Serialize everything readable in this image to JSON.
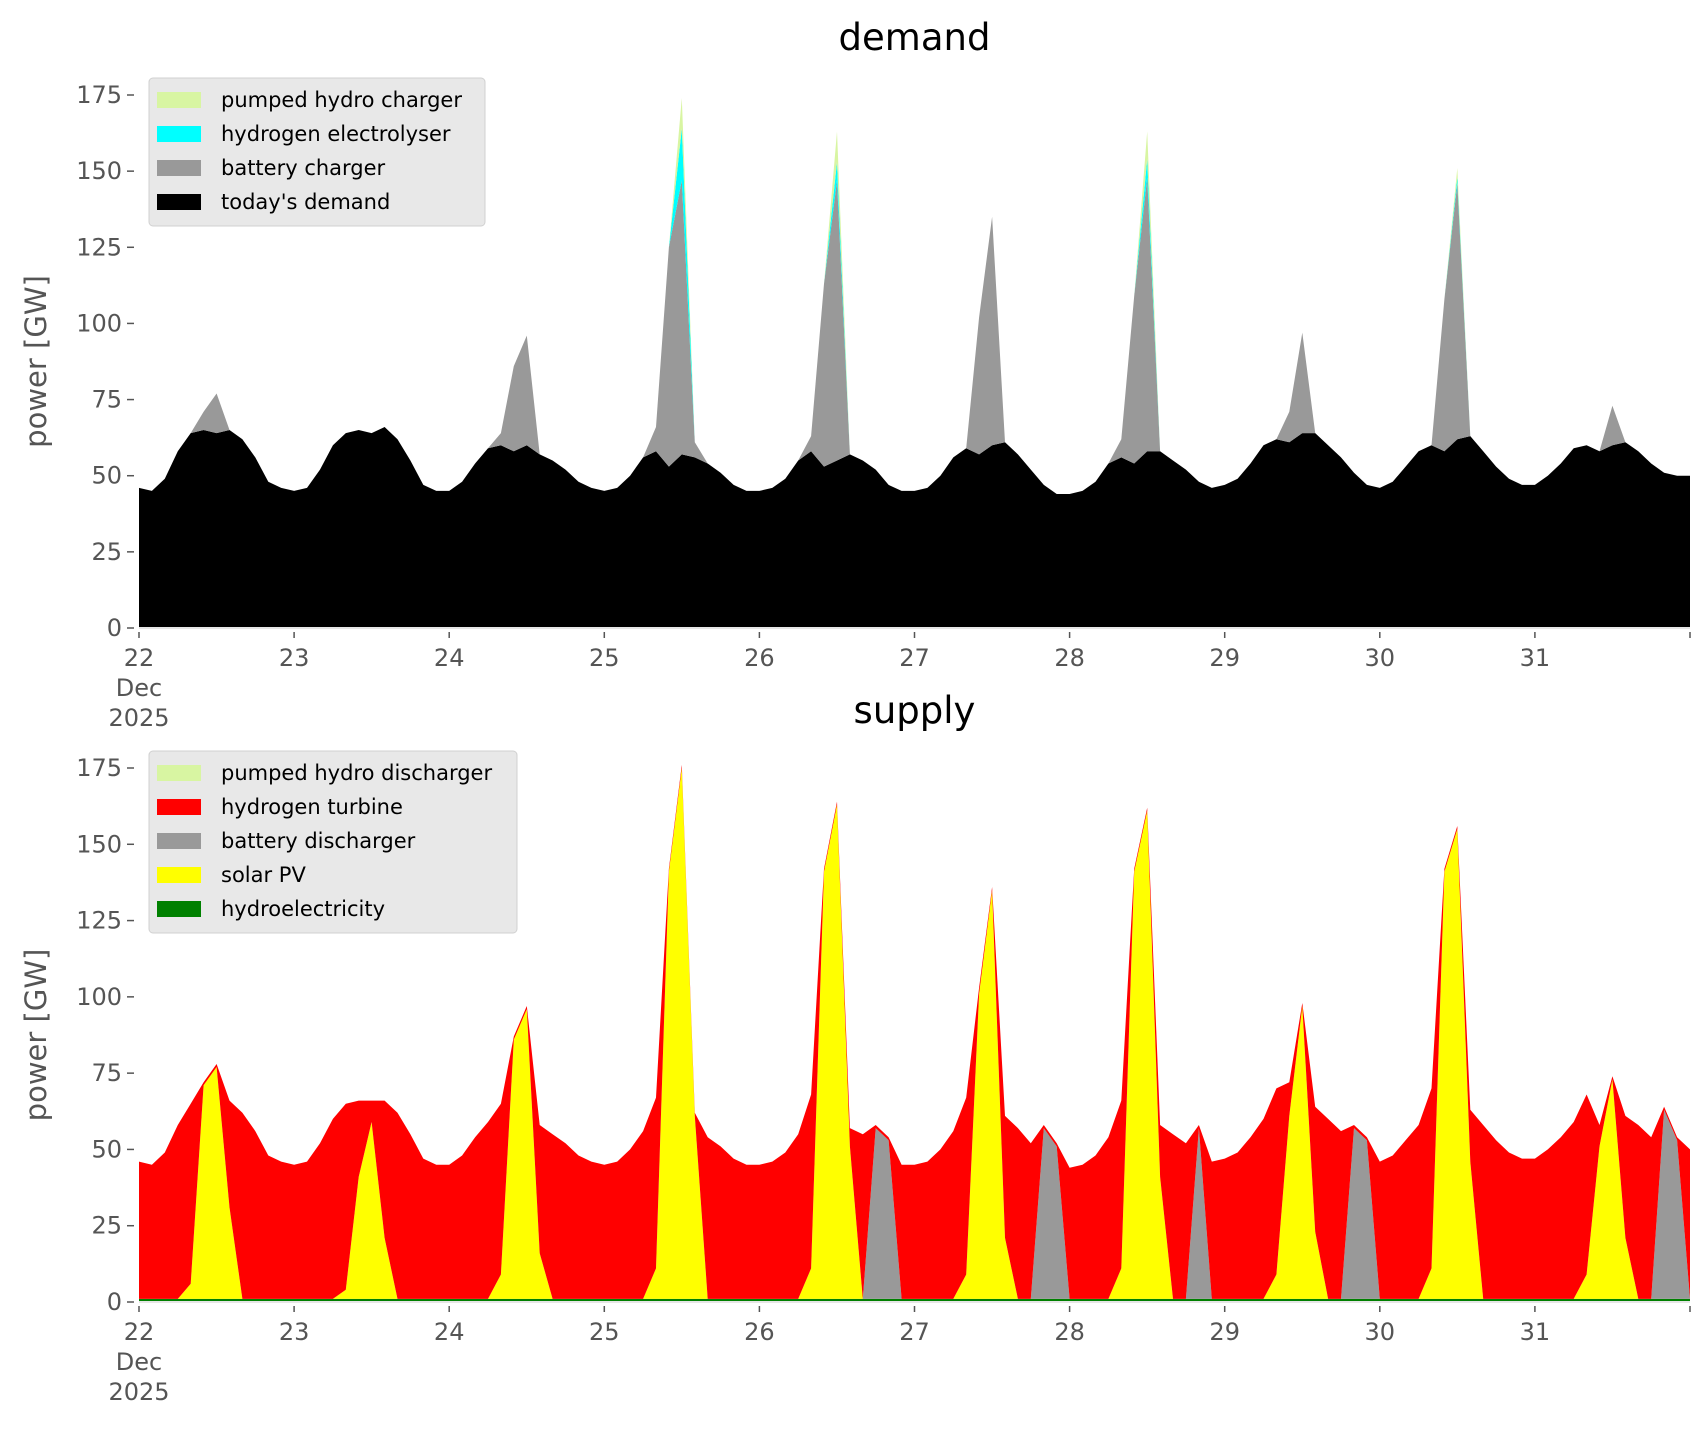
{
  "chart_data": [
    {
      "type": "area",
      "stacked": true,
      "title": "demand",
      "xlabel": "",
      "ylabel": "power [GW]",
      "ylim": [
        0,
        175
      ],
      "yticks": [
        0,
        25,
        50,
        75,
        100,
        125,
        150,
        175
      ],
      "xlim_days": [
        0,
        10
      ],
      "xtick_labels": [
        "22\nDec\n2025",
        "23",
        "24",
        "25",
        "26",
        "27",
        "28",
        "29",
        "30",
        "31"
      ],
      "x_unit": "hours since 22 Dec 2025 00:00",
      "x_step_hours": 2,
      "legend_position": "upper-left",
      "grid": false,
      "series": [
        {
          "name": "today's demand",
          "color": "#000000",
          "values": [
            46,
            45,
            49,
            58,
            64,
            65,
            64,
            65,
            62,
            56,
            48,
            46,
            45,
            46,
            52,
            60,
            64,
            65,
            64,
            66,
            62,
            55,
            47,
            45,
            45,
            48,
            54,
            59,
            60,
            58,
            60,
            57,
            55,
            52,
            48,
            46,
            45,
            46,
            50,
            56,
            58,
            53,
            57,
            56,
            54,
            51,
            47,
            45,
            45,
            46,
            49,
            55,
            58,
            53,
            55,
            57,
            55,
            52,
            47,
            45,
            45,
            46,
            50,
            56,
            59,
            57,
            60,
            61,
            57,
            52,
            47,
            44,
            44,
            45,
            48,
            54,
            56,
            54,
            58,
            58,
            55,
            52,
            48,
            46,
            47,
            49,
            54,
            60,
            62,
            61,
            64,
            64,
            60,
            56,
            51,
            47,
            46,
            48,
            53,
            58,
            60,
            58,
            62,
            63,
            58,
            53,
            49,
            47,
            47,
            50,
            54,
            59,
            60,
            58,
            60,
            61,
            58,
            54,
            51,
            50,
            50
          ]
        },
        {
          "name": "battery charger",
          "color": "#999999",
          "values": [
            0,
            0,
            0,
            0,
            0,
            6,
            13,
            0,
            0,
            0,
            0,
            0,
            0,
            0,
            0,
            0,
            0,
            0,
            0,
            0,
            0,
            0,
            0,
            0,
            0,
            0,
            0,
            0,
            4,
            28,
            36,
            0,
            0,
            0,
            0,
            0,
            0,
            0,
            0,
            0,
            8,
            72,
            90,
            5,
            0,
            0,
            0,
            0,
            0,
            0,
            0,
            0,
            5,
            60,
            92,
            0,
            0,
            0,
            0,
            0,
            0,
            0,
            0,
            0,
            0,
            45,
            75,
            0,
            0,
            0,
            0,
            0,
            0,
            0,
            0,
            0,
            6,
            55,
            90,
            0,
            0,
            0,
            0,
            0,
            0,
            0,
            0,
            0,
            0,
            10,
            33,
            0,
            0,
            0,
            0,
            0,
            0,
            0,
            0,
            0,
            0,
            50,
            84,
            0,
            0,
            0,
            0,
            0,
            0,
            0,
            0,
            0,
            0,
            0,
            13,
            0,
            0,
            0,
            0,
            0,
            0
          ]
        },
        {
          "name": "hydrogen electrolyser",
          "color": "#00ffff",
          "values": [
            0,
            0,
            0,
            0,
            0,
            0,
            0,
            0,
            0,
            0,
            0,
            0,
            0,
            0,
            0,
            0,
            0,
            0,
            0,
            0,
            0,
            0,
            0,
            0,
            0,
            0,
            0,
            0,
            0,
            0,
            0,
            0,
            0,
            0,
            0,
            0,
            0,
            0,
            0,
            0,
            0,
            0,
            17,
            0,
            0,
            0,
            0,
            0,
            0,
            0,
            0,
            0,
            0,
            0,
            6,
            0,
            0,
            0,
            0,
            0,
            0,
            0,
            0,
            0,
            0,
            0,
            0,
            0,
            0,
            0,
            0,
            0,
            0,
            0,
            0,
            0,
            0,
            0,
            6,
            0,
            0,
            0,
            0,
            0,
            0,
            0,
            0,
            0,
            0,
            0,
            0,
            0,
            0,
            0,
            0,
            0,
            0,
            0,
            0,
            0,
            0,
            0,
            2,
            0,
            0,
            0,
            0,
            0,
            0,
            0,
            0,
            0,
            0,
            0,
            0,
            0,
            0,
            0,
            0,
            0,
            0
          ]
        },
        {
          "name": "pumped hydro charger",
          "color": "#d8f5a2",
          "values": [
            0,
            0,
            0,
            0,
            0,
            0,
            0,
            0,
            0,
            0,
            0,
            0,
            0,
            0,
            0,
            0,
            0,
            0,
            0,
            0,
            0,
            0,
            0,
            0,
            0,
            0,
            0,
            0,
            0,
            0,
            0,
            0,
            0,
            0,
            0,
            0,
            0,
            0,
            0,
            0,
            0,
            0,
            10,
            0,
            0,
            0,
            0,
            0,
            0,
            0,
            0,
            0,
            0,
            0,
            10,
            0,
            0,
            0,
            0,
            0,
            0,
            0,
            0,
            0,
            0,
            0,
            0,
            0,
            0,
            0,
            0,
            0,
            0,
            0,
            0,
            0,
            0,
            0,
            9,
            0,
            0,
            0,
            0,
            0,
            0,
            0,
            0,
            0,
            0,
            0,
            0,
            0,
            0,
            0,
            0,
            0,
            0,
            0,
            0,
            0,
            0,
            0,
            3,
            0,
            0,
            0,
            0,
            0,
            0,
            0,
            0,
            0,
            0,
            0,
            0,
            0,
            0,
            0,
            0,
            0,
            0
          ]
        }
      ]
    },
    {
      "type": "area",
      "stacked": true,
      "title": "supply",
      "xlabel": "",
      "ylabel": "power [GW]",
      "ylim": [
        0,
        175
      ],
      "yticks": [
        0,
        25,
        50,
        75,
        100,
        125,
        150,
        175
      ],
      "xlim_days": [
        0,
        10
      ],
      "xtick_labels": [
        "22\nDec\n2025",
        "23",
        "24",
        "25",
        "26",
        "27",
        "28",
        "29",
        "30",
        "31"
      ],
      "x_unit": "hours since 22 Dec 2025 00:00",
      "x_step_hours": 2,
      "legend_position": "upper-left",
      "grid": false,
      "series": [
        {
          "name": "hydroelectricity",
          "color": "#008000",
          "values": [
            1,
            1,
            1,
            1,
            1,
            1,
            1,
            1,
            1,
            1,
            1,
            1,
            1,
            1,
            1,
            1,
            1,
            1,
            1,
            1,
            1,
            1,
            1,
            1,
            1,
            1,
            1,
            1,
            1,
            1,
            1,
            1,
            1,
            1,
            1,
            1,
            1,
            1,
            1,
            1,
            1,
            1,
            1,
            1,
            1,
            1,
            1,
            1,
            1,
            1,
            1,
            1,
            1,
            1,
            1,
            1,
            1,
            1,
            1,
            1,
            1,
            1,
            1,
            1,
            1,
            1,
            1,
            1,
            1,
            1,
            1,
            1,
            1,
            1,
            1,
            1,
            1,
            1,
            1,
            1,
            1,
            1,
            1,
            1,
            1,
            1,
            1,
            1,
            1,
            1,
            1,
            1,
            1,
            1,
            1,
            1,
            1,
            1,
            1,
            1,
            1,
            1,
            1,
            1,
            1,
            1,
            1,
            1,
            1,
            1,
            1,
            1,
            1,
            1,
            1,
            1,
            1,
            1,
            1,
            1,
            1
          ]
        },
        {
          "name": "solar PV",
          "color": "#ffff00",
          "values": [
            0,
            0,
            0,
            0,
            5,
            70,
            76,
            30,
            0,
            0,
            0,
            0,
            0,
            0,
            0,
            0,
            3,
            40,
            58,
            20,
            0,
            0,
            0,
            0,
            0,
            0,
            0,
            0,
            8,
            85,
            95,
            15,
            0,
            0,
            0,
            0,
            0,
            0,
            0,
            0,
            10,
            140,
            174,
            60,
            0,
            0,
            0,
            0,
            0,
            0,
            0,
            0,
            10,
            140,
            162,
            50,
            0,
            0,
            0,
            0,
            0,
            0,
            0,
            0,
            8,
            100,
            134,
            20,
            0,
            0,
            0,
            0,
            0,
            0,
            0,
            0,
            10,
            140,
            160,
            40,
            0,
            0,
            0,
            0,
            0,
            0,
            0,
            0,
            8,
            60,
            96,
            22,
            0,
            0,
            0,
            0,
            0,
            0,
            0,
            0,
            10,
            140,
            154,
            45,
            0,
            0,
            0,
            0,
            0,
            0,
            0,
            0,
            8,
            50,
            72,
            20,
            0,
            0,
            0,
            0,
            0
          ]
        },
        {
          "name": "battery discharger",
          "color": "#999999",
          "values": [
            0,
            0,
            0,
            0,
            0,
            0,
            0,
            0,
            0,
            0,
            0,
            0,
            0,
            0,
            0,
            0,
            0,
            0,
            0,
            0,
            0,
            0,
            0,
            0,
            0,
            0,
            0,
            0,
            0,
            0,
            0,
            0,
            0,
            0,
            0,
            0,
            0,
            0,
            0,
            0,
            0,
            0,
            0,
            0,
            0,
            0,
            0,
            0,
            0,
            0,
            0,
            0,
            0,
            0,
            0,
            0,
            0,
            56,
            52,
            0,
            0,
            0,
            0,
            0,
            0,
            0,
            0,
            0,
            0,
            0,
            56,
            50,
            0,
            0,
            0,
            0,
            0,
            0,
            0,
            0,
            0,
            0,
            56,
            0,
            0,
            0,
            0,
            0,
            0,
            0,
            0,
            0,
            0,
            0,
            56,
            52,
            0,
            0,
            0,
            0,
            0,
            0,
            0,
            0,
            0,
            0,
            0,
            0,
            0,
            0,
            0,
            0,
            0,
            0,
            0,
            0,
            0,
            0,
            62,
            52,
            0
          ]
        },
        {
          "name": "hydrogen turbine",
          "color": "#ff0000",
          "values": [
            45,
            44,
            48,
            57,
            59,
            1,
            1,
            35,
            61,
            55,
            47,
            45,
            44,
            45,
            51,
            59,
            61,
            25,
            7,
            45,
            61,
            54,
            46,
            44,
            44,
            47,
            53,
            58,
            56,
            1,
            1,
            42,
            54,
            51,
            47,
            45,
            44,
            45,
            49,
            55,
            56,
            1,
            1,
            1,
            53,
            50,
            46,
            44,
            44,
            45,
            48,
            54,
            57,
            1,
            1,
            6,
            54,
            1,
            1,
            44,
            44,
            45,
            49,
            55,
            58,
            2,
            1,
            40,
            56,
            51,
            1,
            1,
            43,
            44,
            47,
            53,
            55,
            1,
            1,
            17,
            54,
            51,
            1,
            45,
            46,
            48,
            53,
            59,
            61,
            11,
            1,
            41,
            59,
            55,
            1,
            1,
            45,
            47,
            52,
            57,
            59,
            1,
            1,
            17,
            57,
            52,
            48,
            46,
            46,
            49,
            53,
            58,
            59,
            7,
            1,
            40,
            57,
            53,
            1,
            1,
            49
          ]
        },
        {
          "name": "pumped hydro discharger",
          "color": "#d8f5a2",
          "values": [
            0,
            0,
            0,
            0,
            0,
            0,
            0,
            0,
            0,
            0,
            0,
            0,
            0,
            0,
            0,
            0,
            0,
            0,
            0,
            0,
            0,
            0,
            0,
            0,
            0,
            0,
            0,
            0,
            0,
            0,
            0,
            0,
            0,
            0,
            0,
            0,
            0,
            0,
            0,
            0,
            0,
            0,
            0,
            0,
            0,
            0,
            0,
            0,
            0,
            0,
            0,
            0,
            0,
            0,
            0,
            0,
            0,
            0,
            0,
            0,
            0,
            0,
            0,
            0,
            0,
            0,
            0,
            0,
            0,
            0,
            0,
            0,
            0,
            0,
            0,
            0,
            0,
            0,
            0,
            0,
            0,
            0,
            0,
            0,
            0,
            0,
            0,
            0,
            0,
            0,
            0,
            0,
            0,
            0,
            0,
            0,
            0,
            0,
            0,
            0,
            0,
            0,
            0,
            0,
            0,
            0,
            0,
            0,
            0,
            0,
            0,
            0,
            0,
            0,
            0,
            0,
            0,
            0,
            0,
            0,
            0
          ]
        }
      ]
    }
  ],
  "legends": {
    "demand": [
      "pumped hydro charger",
      "hydrogen electrolyser",
      "battery charger",
      "today's demand"
    ],
    "supply": [
      "pumped hydro discharger",
      "hydrogen turbine",
      "battery discharger",
      "solar PV",
      "hydroelectricity"
    ]
  }
}
